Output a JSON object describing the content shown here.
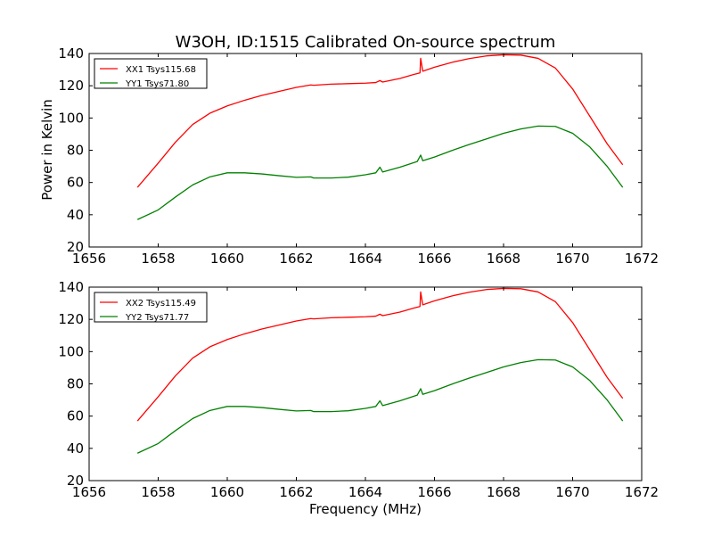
{
  "chart_data": [
    {
      "type": "line",
      "title": "W3OH, ID:1515 Calibrated On-source spectrum",
      "xlabel": "",
      "ylabel": "Power in Kelvin",
      "xlim": [
        1656,
        1672
      ],
      "ylim": [
        20,
        140
      ],
      "xticks": [
        "1656",
        "1658",
        "1660",
        "1662",
        "1664",
        "1666",
        "1668",
        "1670",
        "1672"
      ],
      "yticks": [
        "20",
        "40",
        "60",
        "80",
        "100",
        "120",
        "140"
      ],
      "legend_position": "top-left",
      "grid": false,
      "series": [
        {
          "name": "XX1 Tsys115.68",
          "color": "#ff0000",
          "x": [
            1657.4,
            1658.0,
            1658.5,
            1659.0,
            1659.5,
            1660.0,
            1660.5,
            1661.0,
            1661.5,
            1662.0,
            1662.42,
            1662.5,
            1663.0,
            1663.5,
            1664.0,
            1664.3,
            1664.42,
            1664.5,
            1665.0,
            1665.4,
            1665.58,
            1665.6,
            1665.66,
            1666.0,
            1666.5,
            1667.0,
            1667.5,
            1668.0,
            1668.5,
            1669.0,
            1669.5,
            1670.0,
            1670.5,
            1671.0,
            1671.45
          ],
          "values": [
            57,
            72,
            85,
            96,
            103,
            107.5,
            111,
            114,
            116.5,
            119,
            120.5,
            120.3,
            121,
            121.3,
            121.6,
            122,
            123.2,
            122.3,
            124.5,
            127,
            128,
            137,
            129,
            131.5,
            134.5,
            136.8,
            138.5,
            139.2,
            139,
            137,
            131,
            118,
            101,
            84,
            71
          ]
        },
        {
          "name": "YY1 Tsys71.80",
          "color": "#008000",
          "x": [
            1657.4,
            1658.0,
            1658.5,
            1659.0,
            1659.5,
            1660.0,
            1660.5,
            1661.0,
            1661.5,
            1662.0,
            1662.42,
            1662.5,
            1663.0,
            1663.5,
            1664.0,
            1664.3,
            1664.42,
            1664.5,
            1665.0,
            1665.5,
            1665.6,
            1665.66,
            1666.0,
            1666.5,
            1667.0,
            1667.5,
            1668.0,
            1668.5,
            1669.0,
            1669.5,
            1670.0,
            1670.5,
            1671.0,
            1671.45
          ],
          "values": [
            37,
            43,
            51,
            58.5,
            63.5,
            66,
            66,
            65.3,
            64.2,
            63.2,
            63.5,
            62.8,
            62.8,
            63.3,
            64.8,
            66,
            69.5,
            66.5,
            69.5,
            73,
            77,
            73.5,
            75.8,
            79.8,
            83.5,
            87,
            90.5,
            93.2,
            95,
            94.8,
            90.5,
            82,
            70,
            57
          ]
        }
      ]
    },
    {
      "type": "line",
      "title": "",
      "xlabel": "Frequency (MHz)",
      "ylabel": "",
      "xlim": [
        1656,
        1672
      ],
      "ylim": [
        20,
        140
      ],
      "xticks": [
        "1656",
        "1658",
        "1660",
        "1662",
        "1664",
        "1666",
        "1668",
        "1670",
        "1672"
      ],
      "yticks": [
        "20",
        "40",
        "60",
        "80",
        "100",
        "120",
        "140"
      ],
      "legend_position": "top-left",
      "grid": false,
      "series": [
        {
          "name": "XX2 Tsys115.49",
          "color": "#ff0000",
          "x": [
            1657.4,
            1658.0,
            1658.5,
            1659.0,
            1659.5,
            1660.0,
            1660.5,
            1661.0,
            1661.5,
            1662.0,
            1662.42,
            1662.5,
            1663.0,
            1663.5,
            1664.0,
            1664.3,
            1664.42,
            1664.5,
            1665.0,
            1665.4,
            1665.58,
            1665.6,
            1665.66,
            1666.0,
            1666.5,
            1667.0,
            1667.5,
            1668.0,
            1668.5,
            1669.0,
            1669.5,
            1670.0,
            1670.5,
            1671.0,
            1671.45
          ],
          "values": [
            57,
            72,
            85,
            96,
            103,
            107.5,
            111,
            114,
            116.5,
            119,
            120.5,
            120.3,
            121,
            121.3,
            121.6,
            122,
            123.2,
            122.3,
            124.5,
            127,
            128,
            137,
            129,
            131.5,
            134.5,
            136.8,
            138.5,
            139.2,
            139,
            137,
            131,
            118,
            101,
            84,
            71
          ]
        },
        {
          "name": "YY2 Tsys71.77",
          "color": "#008000",
          "x": [
            1657.4,
            1658.0,
            1658.5,
            1659.0,
            1659.5,
            1660.0,
            1660.5,
            1661.0,
            1661.5,
            1662.0,
            1662.42,
            1662.5,
            1663.0,
            1663.5,
            1664.0,
            1664.3,
            1664.42,
            1664.5,
            1665.0,
            1665.5,
            1665.6,
            1665.66,
            1666.0,
            1666.5,
            1667.0,
            1667.5,
            1668.0,
            1668.5,
            1669.0,
            1669.5,
            1670.0,
            1670.5,
            1671.0,
            1671.45
          ],
          "values": [
            37,
            43,
            51,
            58.5,
            63.5,
            66,
            66,
            65.3,
            64.2,
            63.2,
            63.5,
            62.8,
            62.8,
            63.3,
            64.8,
            66,
            69.5,
            66.5,
            69.5,
            73,
            77,
            73.5,
            75.8,
            79.8,
            83.5,
            87,
            90.5,
            93.2,
            95,
            94.8,
            90.5,
            82,
            70,
            57
          ]
        }
      ]
    }
  ]
}
